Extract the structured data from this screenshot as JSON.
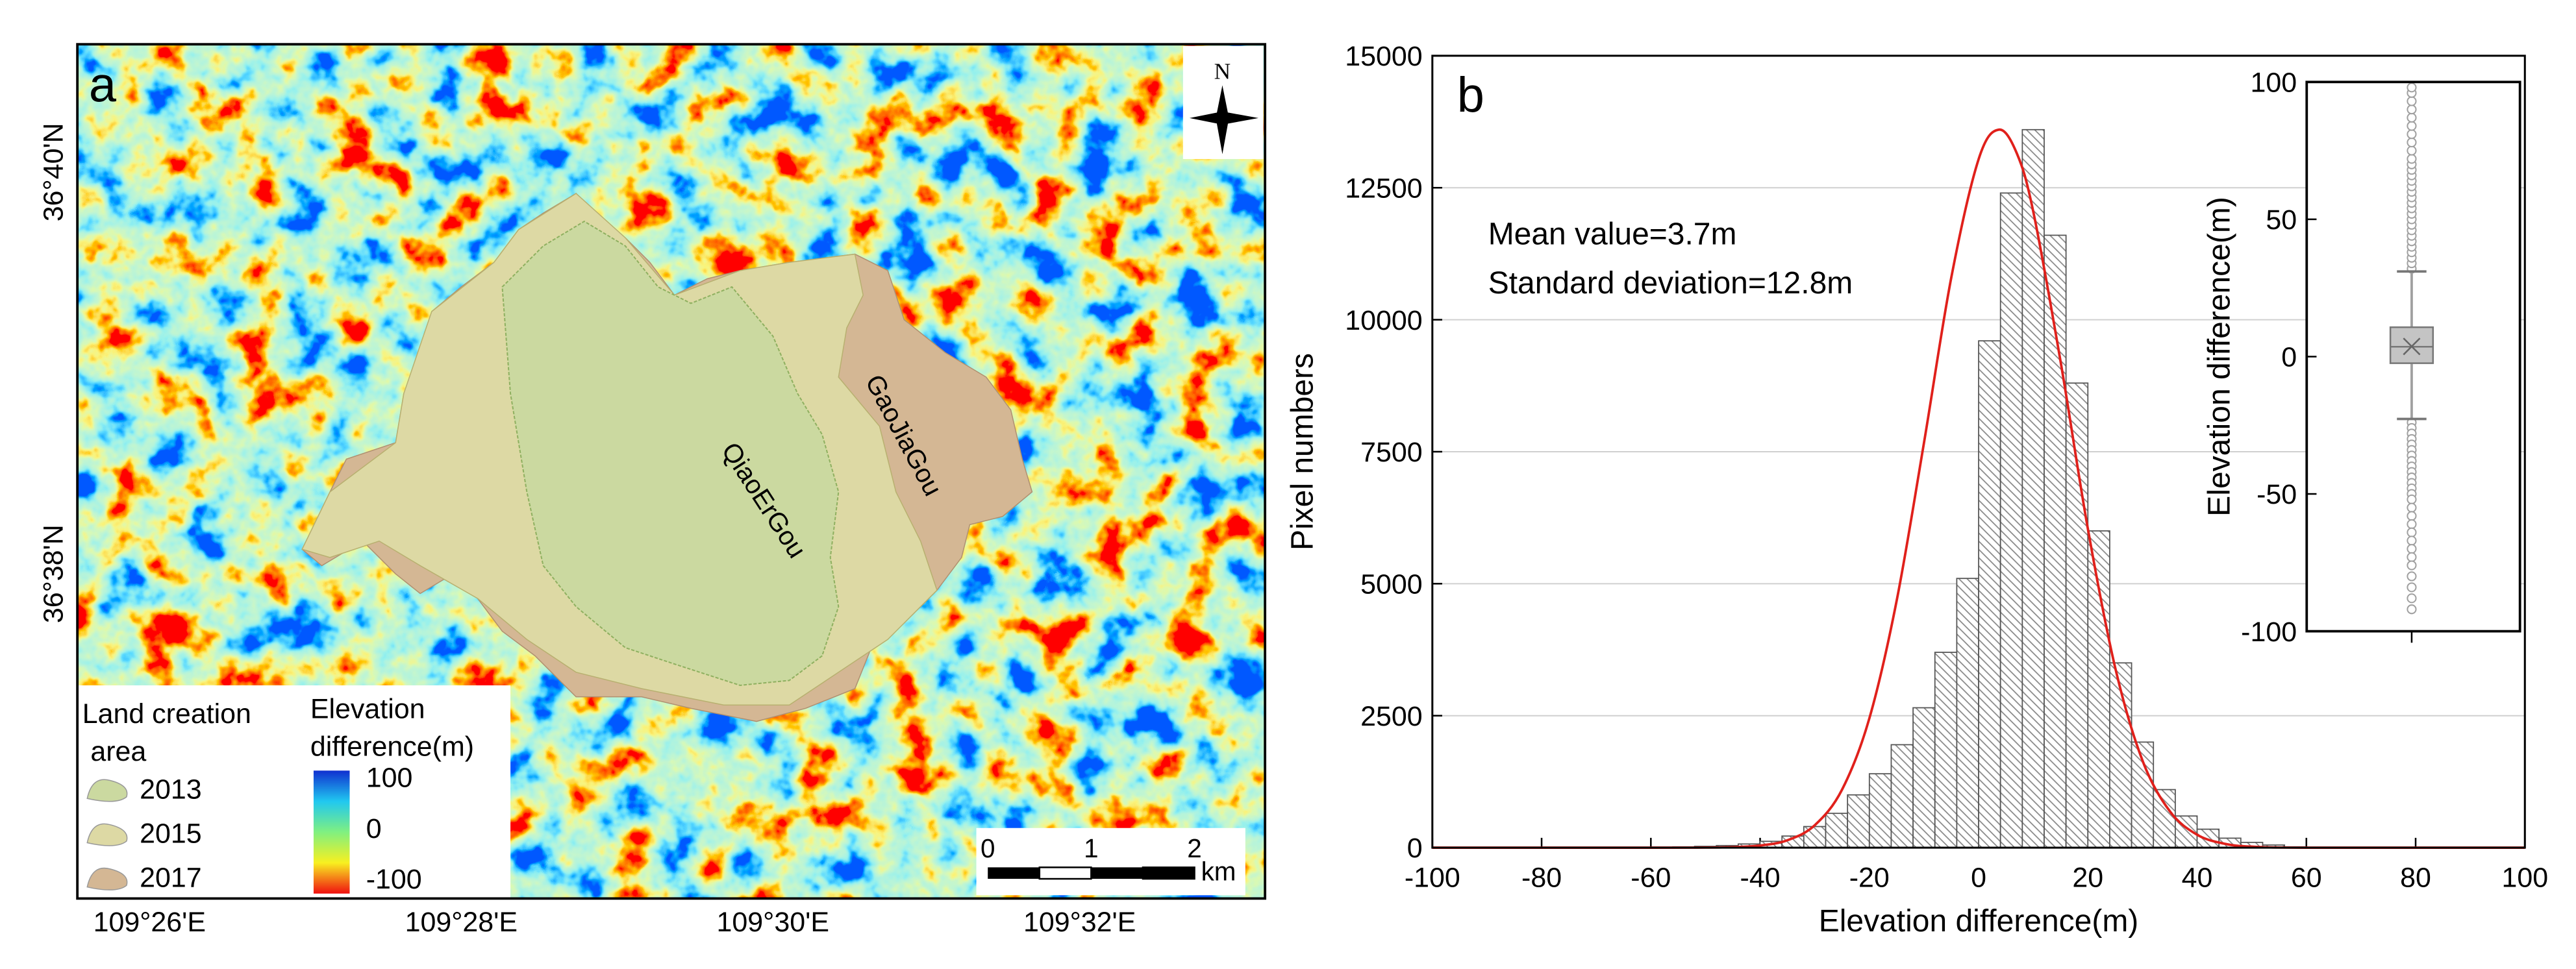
{
  "map": {
    "panel_label": "a",
    "lat_labels": [
      "36°40'N",
      "36°38'N"
    ],
    "lon_labels": [
      "109°26'E",
      "109°28'E",
      "109°30'E",
      "109°32'E"
    ],
    "north": "N",
    "area_labels": [
      "QiaoErGou",
      "GaoJiaGou"
    ],
    "legend": {
      "title": [
        "Land creation",
        "area"
      ],
      "items": [
        {
          "label": "2013",
          "color": "#cbd9a0"
        },
        {
          "label": "2015",
          "color": "#ddd9a4"
        },
        {
          "label": "2017",
          "color": "#d4b794"
        }
      ]
    },
    "colorbar": {
      "title": [
        "Elevation",
        "difference(m)"
      ],
      "ticks": [
        100,
        0,
        -100
      ]
    },
    "scale_bar": {
      "ticks": [
        0,
        1,
        2
      ],
      "unit": "km"
    }
  },
  "chart_data": [
    {
      "type": "histogram",
      "panel_label": "b",
      "xlabel": "Elevation difference(m)",
      "ylabel": "Pixel numbers",
      "bins": [
        -60,
        -56,
        -52,
        -48,
        -44,
        -40,
        -36,
        -32,
        -28,
        -24,
        -20,
        -16,
        -12,
        -8,
        -4,
        0,
        4,
        8,
        12,
        16,
        20,
        24,
        28,
        32,
        36,
        40,
        44,
        48,
        52,
        56,
        60
      ],
      "counts": [
        10,
        15,
        25,
        40,
        70,
        120,
        220,
        400,
        650,
        1000,
        1400,
        1950,
        2650,
        3700,
        5100,
        9600,
        12400,
        13600,
        11600,
        8800,
        6000,
        3500,
        2000,
        1100,
        600,
        350,
        180,
        100,
        50,
        15
      ],
      "color": "#555555",
      "xlim": [
        -100,
        100
      ],
      "xticks": [
        -100,
        -80,
        -60,
        -40,
        -20,
        0,
        20,
        40,
        60,
        80,
        100
      ],
      "ylim": [
        0,
        15000
      ],
      "yticks": [
        0,
        2500,
        5000,
        7500,
        10000,
        12500,
        15000
      ],
      "grid": true,
      "annotations": [
        "Mean value=3.7m",
        "Standard deviation=12.8m"
      ],
      "curve": {
        "color": "#e0201b",
        "x": [
          -100,
          -60,
          -50,
          -45,
          -40,
          -35,
          -30,
          -25,
          -20,
          -15,
          -10,
          -5,
          0,
          3.7,
          7,
          10,
          15,
          20,
          25,
          30,
          35,
          40,
          45,
          50,
          60,
          100
        ],
        "y": [
          0,
          0,
          2,
          10,
          40,
          141,
          425,
          1100,
          2450,
          4680,
          7670,
          10800,
          13040,
          13600,
          13150,
          12050,
          9210,
          6040,
          3410,
          1650,
          690,
          245,
          75,
          20,
          0,
          0
        ]
      }
    },
    {
      "type": "box",
      "ylabel": "Elevation difference(m)",
      "ylim": [
        -100,
        100
      ],
      "yticks": [
        -100,
        -50,
        0,
        50,
        100
      ],
      "whisker_low": -22.7,
      "q1": -2.4,
      "median": 3.6,
      "q3": 10.7,
      "whisker_high": 31,
      "mean": 3.7,
      "color": "#a0a0a0",
      "outliers": [
        32,
        34,
        36,
        38,
        40,
        42,
        44,
        46,
        48,
        50,
        52,
        54,
        56,
        58,
        60,
        62,
        64,
        66,
        68,
        70,
        72,
        75,
        78,
        81,
        84,
        87,
        90,
        93,
        96,
        98,
        -24,
        -26,
        -28,
        -30,
        -32,
        -34,
        -36,
        -38,
        -40,
        -42,
        -44,
        -46,
        -48,
        -50,
        -52,
        -55,
        -58,
        -61,
        -64,
        -67,
        -70,
        -73,
        -76,
        -80,
        -84,
        -88,
        -92
      ]
    }
  ]
}
